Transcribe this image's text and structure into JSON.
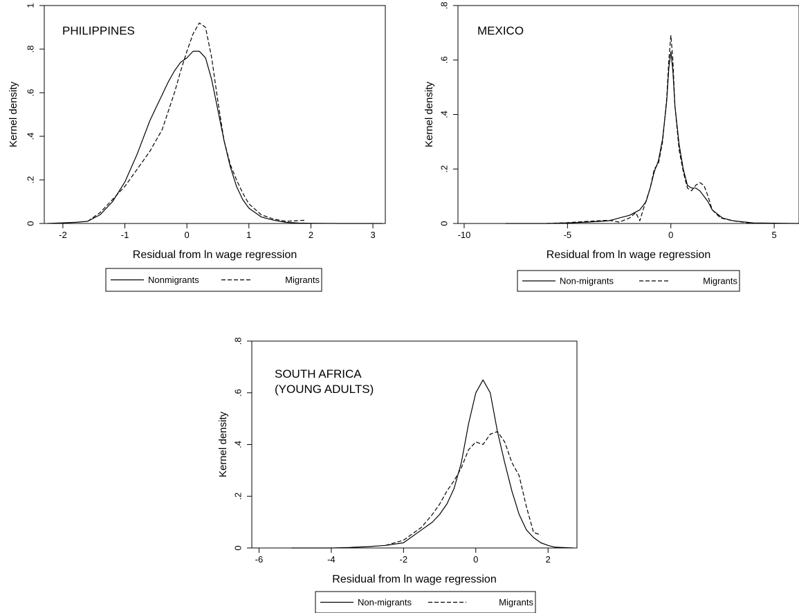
{
  "chart_data": [
    {
      "type": "line",
      "title": "PHILIPPINES",
      "xlabel": "Residual from ln wage regression",
      "ylabel": "Kernel density",
      "xlim": [
        -2.3,
        3.2
      ],
      "ylim": [
        0,
        1
      ],
      "xticks": [
        -2,
        -1,
        0,
        1,
        2,
        3
      ],
      "yticks": [
        0,
        0.2,
        0.4,
        0.6,
        0.8,
        1
      ],
      "ytick_labels": [
        "0",
        ".2",
        ".4",
        ".6",
        ".8",
        "1"
      ],
      "legend": "bottom",
      "series": [
        {
          "name": "Nonmigrants",
          "style": "solid",
          "x": [
            -2.25,
            -2.0,
            -1.8,
            -1.6,
            -1.4,
            -1.2,
            -1.0,
            -0.8,
            -0.6,
            -0.5,
            -0.4,
            -0.3,
            -0.2,
            -0.1,
            0.0,
            0.1,
            0.2,
            0.3,
            0.4,
            0.5,
            0.6,
            0.7,
            0.8,
            0.9,
            1.0,
            1.1,
            1.2,
            1.4,
            1.6,
            1.8,
            2.0,
            2.5,
            3.15
          ],
          "y": [
            0,
            0.003,
            0.005,
            0.01,
            0.04,
            0.1,
            0.19,
            0.32,
            0.47,
            0.53,
            0.59,
            0.65,
            0.7,
            0.74,
            0.76,
            0.79,
            0.79,
            0.76,
            0.66,
            0.52,
            0.38,
            0.26,
            0.17,
            0.11,
            0.07,
            0.05,
            0.03,
            0.015,
            0.005,
            0.002,
            0.001,
            0,
            0
          ]
        },
        {
          "name": "Migrants",
          "style": "dashed",
          "x": [
            -1.6,
            -1.4,
            -1.2,
            -1.0,
            -0.8,
            -0.6,
            -0.4,
            -0.2,
            -0.1,
            0.0,
            0.1,
            0.2,
            0.3,
            0.4,
            0.5,
            0.6,
            0.7,
            0.8,
            0.9,
            1.0,
            1.2,
            1.4,
            1.6,
            1.9
          ],
          "y": [
            0.01,
            0.05,
            0.11,
            0.17,
            0.25,
            0.33,
            0.43,
            0.6,
            0.7,
            0.79,
            0.87,
            0.92,
            0.9,
            0.76,
            0.56,
            0.38,
            0.27,
            0.2,
            0.14,
            0.09,
            0.04,
            0.02,
            0.01,
            0.015
          ]
        }
      ]
    },
    {
      "type": "line",
      "title": "MEXICO",
      "xlabel": "Residual from ln wage regression",
      "ylabel": "Kernel density",
      "xlim": [
        -10.3,
        6.2
      ],
      "ylim": [
        0,
        0.8
      ],
      "xticks": [
        -10,
        -5,
        0,
        5
      ],
      "yticks": [
        0,
        0.2,
        0.4,
        0.6,
        0.8
      ],
      "ytick_labels": [
        "0",
        ".2",
        ".4",
        ".6",
        ".8"
      ],
      "legend": "bottom",
      "series": [
        {
          "name": "Non-migrants",
          "style": "solid",
          "x": [
            -8.0,
            -6.0,
            -5.0,
            -4.0,
            -3.0,
            -2.5,
            -2.0,
            -1.5,
            -1.2,
            -1.0,
            -0.8,
            -0.6,
            -0.4,
            -0.2,
            -0.1,
            0.0,
            0.1,
            0.2,
            0.4,
            0.6,
            0.8,
            1.0,
            1.2,
            1.4,
            1.6,
            1.8,
            2.0,
            2.5,
            3.0,
            4.0,
            6.2
          ],
          "y": [
            0,
            0,
            0.002,
            0.005,
            0.01,
            0.02,
            0.03,
            0.05,
            0.08,
            0.13,
            0.19,
            0.23,
            0.31,
            0.45,
            0.57,
            0.63,
            0.56,
            0.43,
            0.29,
            0.2,
            0.14,
            0.13,
            0.13,
            0.12,
            0.1,
            0.08,
            0.05,
            0.02,
            0.01,
            0.002,
            0
          ]
        },
        {
          "name": "Migrants",
          "style": "dashed",
          "x": [
            -6.0,
            -5.0,
            -4.0,
            -3.0,
            -2.5,
            -2.0,
            -1.7,
            -1.5,
            -1.3,
            -1.0,
            -0.8,
            -0.6,
            -0.4,
            -0.2,
            -0.1,
            0.0,
            0.1,
            0.2,
            0.4,
            0.6,
            0.8,
            1.0,
            1.2,
            1.4,
            1.6,
            1.8,
            2.0,
            2.4,
            3.0,
            4.0
          ],
          "y": [
            0,
            0.003,
            0.008,
            0.012,
            0.005,
            0.02,
            0.04,
            0.01,
            0.06,
            0.13,
            0.2,
            0.22,
            0.3,
            0.46,
            0.6,
            0.69,
            0.6,
            0.43,
            0.27,
            0.19,
            0.13,
            0.12,
            0.14,
            0.15,
            0.14,
            0.1,
            0.05,
            0.02,
            0.01,
            0
          ]
        }
      ]
    },
    {
      "type": "line",
      "title": "SOUTH AFRICA",
      "subtitle": "(YOUNG ADULTS)",
      "xlabel": "Residual from ln wage regression",
      "ylabel": "Kernel density",
      "xlim": [
        -6.2,
        2.8
      ],
      "ylim": [
        0,
        0.8
      ],
      "xticks": [
        -6,
        -4,
        -2,
        0,
        2
      ],
      "yticks": [
        0,
        0.2,
        0.4,
        0.6,
        0.8
      ],
      "ytick_labels": [
        "0",
        ".2",
        ".4",
        ".6",
        ".8"
      ],
      "legend": "bottom",
      "series": [
        {
          "name": "Non-migrants",
          "style": "solid",
          "x": [
            -5.1,
            -4.5,
            -4.0,
            -3.5,
            -3.0,
            -2.5,
            -2.0,
            -1.8,
            -1.5,
            -1.2,
            -1.0,
            -0.8,
            -0.6,
            -0.4,
            -0.2,
            0.0,
            0.2,
            0.4,
            0.6,
            0.8,
            1.0,
            1.2,
            1.4,
            1.6,
            1.8,
            2.0,
            2.2,
            2.7
          ],
          "y": [
            0,
            0,
            0,
            0.002,
            0.005,
            0.01,
            0.02,
            0.04,
            0.07,
            0.1,
            0.13,
            0.17,
            0.23,
            0.33,
            0.48,
            0.6,
            0.65,
            0.6,
            0.45,
            0.33,
            0.22,
            0.13,
            0.07,
            0.04,
            0.02,
            0.01,
            0.003,
            0
          ]
        },
        {
          "name": "Migrants",
          "style": "dashed",
          "x": [
            -2.5,
            -2.0,
            -1.8,
            -1.5,
            -1.2,
            -1.0,
            -0.8,
            -0.6,
            -0.4,
            -0.2,
            0.0,
            0.2,
            0.4,
            0.6,
            0.8,
            1.0,
            1.2,
            1.4,
            1.6,
            1.8
          ],
          "y": [
            0.01,
            0.03,
            0.05,
            0.08,
            0.13,
            0.17,
            0.22,
            0.26,
            0.31,
            0.38,
            0.41,
            0.4,
            0.44,
            0.45,
            0.41,
            0.33,
            0.28,
            0.16,
            0.06,
            0.05
          ]
        }
      ]
    }
  ]
}
